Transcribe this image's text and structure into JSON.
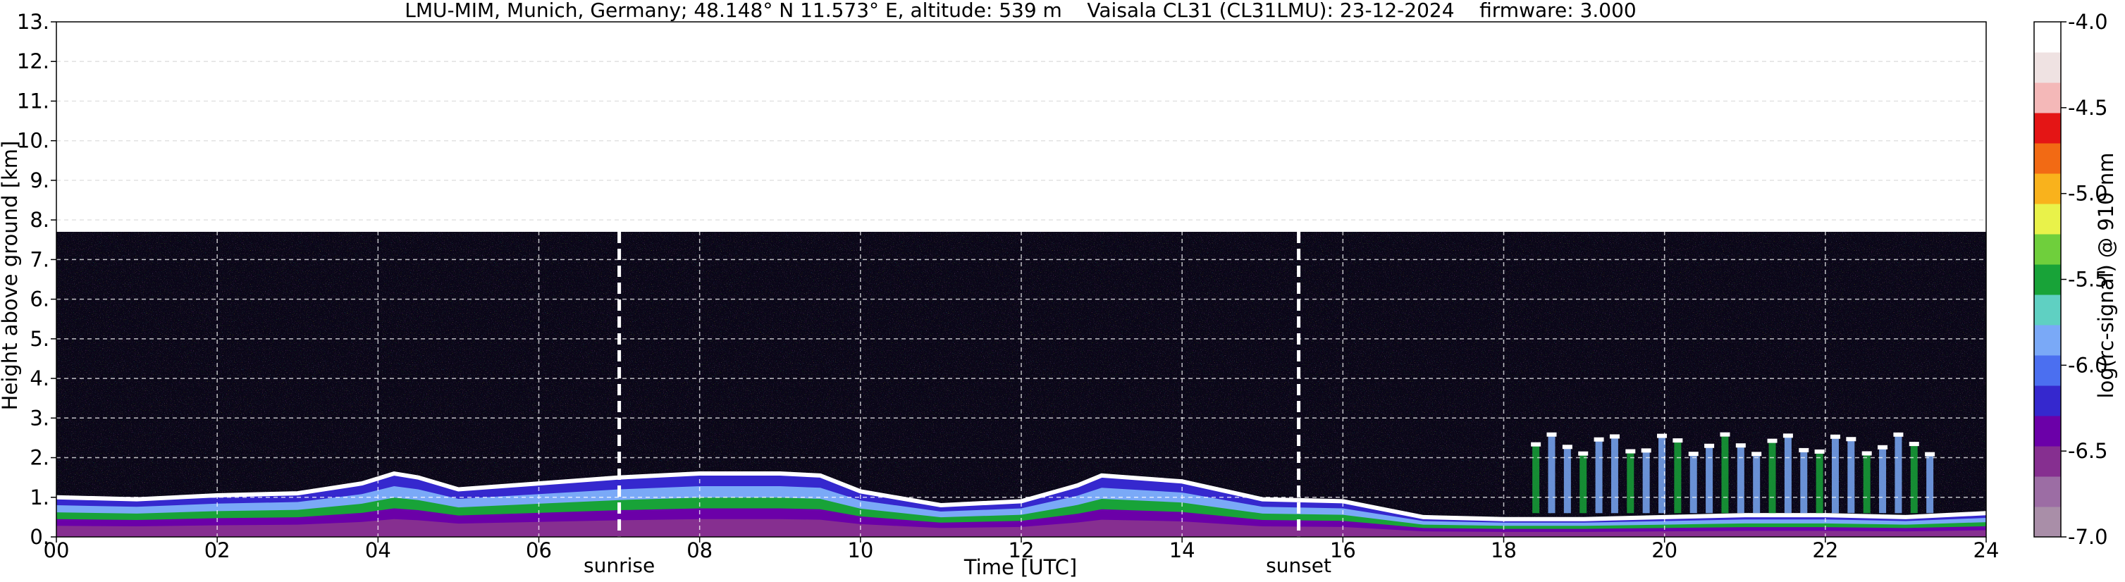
{
  "chart_data": {
    "type": "heatmap",
    "title": "LMU-MIM, Munich, Germany; 48.148° N 11.573° E, altitude: 539 m    Vaisala CL31 (CL31LMU): 23-12-2024    firmware: 3.000",
    "xlabel": "Time [UTC]",
    "ylabel": "Height above ground [km]",
    "xlim": [
      0,
      24
    ],
    "ylim": [
      0,
      13
    ],
    "x_ticks": [
      0,
      2,
      4,
      6,
      8,
      10,
      12,
      14,
      16,
      18,
      20,
      22,
      24
    ],
    "x_tick_labels": [
      "00",
      "02",
      "04",
      "06",
      "08",
      "10",
      "12",
      "14",
      "16",
      "18",
      "20",
      "22",
      "24"
    ],
    "y_ticks": [
      0,
      1,
      2,
      3,
      4,
      5,
      6,
      7,
      8,
      9,
      10,
      11,
      12,
      13
    ],
    "y_tick_labels": [
      "0.",
      "1.",
      "2.",
      "3.",
      "4.",
      "5.",
      "6.",
      "7.",
      "8.",
      "9.",
      "10.",
      "11.",
      "12.",
      "13."
    ],
    "grid": true,
    "colorbar": {
      "label": "log(rc-signal) @ 910 nm",
      "range": [
        -7.0,
        -4.0
      ],
      "ticks": [
        -7.0,
        -6.5,
        -6.0,
        -5.5,
        -5.0,
        -4.5,
        -4.0
      ],
      "tick_labels": [
        "-7.0",
        "-6.5",
        "-6.0",
        "-5.5",
        "-5.0",
        "-4.5",
        "-4.0"
      ]
    },
    "annotations": [
      {
        "label": "sunrise",
        "time": 7.0
      },
      {
        "label": "sunset",
        "time": 15.45
      }
    ],
    "max_range_km": 7.7,
    "boundary_layer_top_km": [
      [
        0,
        1.0
      ],
      [
        1,
        0.95
      ],
      [
        2,
        1.05
      ],
      [
        3,
        1.1
      ],
      [
        3.8,
        1.35
      ],
      [
        4.2,
        1.6
      ],
      [
        4.5,
        1.5
      ],
      [
        5,
        1.2
      ],
      [
        6,
        1.35
      ],
      [
        7,
        1.5
      ],
      [
        8,
        1.6
      ],
      [
        9,
        1.6
      ],
      [
        9.5,
        1.55
      ],
      [
        10,
        1.15
      ],
      [
        11,
        0.8
      ],
      [
        12,
        0.9
      ],
      [
        12.7,
        1.3
      ],
      [
        13,
        1.55
      ],
      [
        14,
        1.4
      ],
      [
        15,
        0.95
      ],
      [
        16,
        0.9
      ],
      [
        16.5,
        0.7
      ],
      [
        17,
        0.5
      ],
      [
        18,
        0.45
      ],
      [
        19,
        0.45
      ],
      [
        20,
        0.5
      ],
      [
        21,
        0.55
      ],
      [
        22,
        0.55
      ],
      [
        23,
        0.5
      ],
      [
        24,
        0.6
      ]
    ],
    "cloud_bases": [
      {
        "time_start": 18.4,
        "time_end": 23.3,
        "base_km": 2.3
      }
    ],
    "colors": {
      "noise_background": "#0a0618",
      "boundary_layer_top": "#ffffff",
      "bar_scale": [
        "#a98ea8",
        "#9c6da4",
        "#862f90",
        "#6b00a8",
        "#3528ce",
        "#4b6ff0",
        "#7aa9f7",
        "#5fd0c2",
        "#18a338",
        "#6fcf3c",
        "#e9f24a",
        "#f9b21c",
        "#f26a14",
        "#e41515",
        "#f4b8b8",
        "#efe2e2",
        "#ffffff"
      ]
    }
  }
}
